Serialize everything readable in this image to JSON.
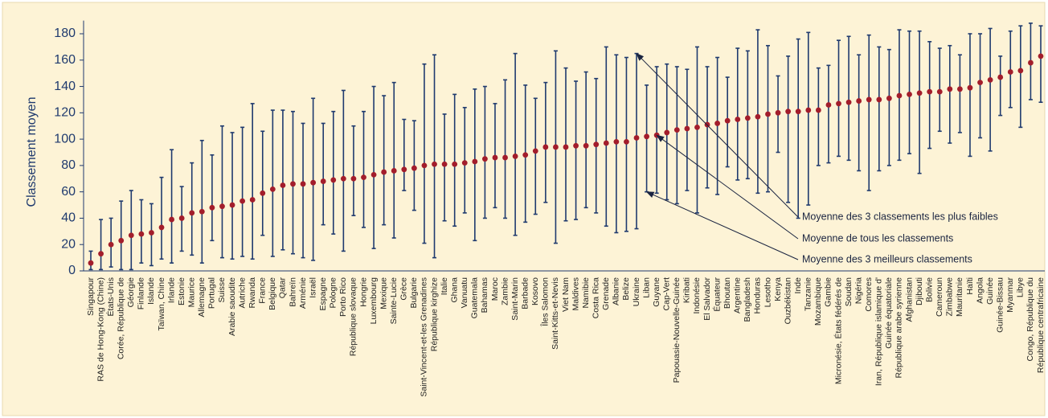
{
  "chart_data": {
    "type": "range-dot",
    "y_axis_label": "Classement moyen",
    "categories": [
      "Singapour",
      "RAS de Hong-Kong (Chine)",
      "États-Unis",
      "Corée, République de",
      "Géorgie",
      "Finlande",
      "Islande",
      "Taïwan, Chine",
      "Irlande",
      "Estonie",
      "Maurice",
      "Allemagne",
      "Portugal",
      "Suisse",
      "Arabie saoudite",
      "Autriche",
      "Rwanda",
      "France",
      "Belgique",
      "Qatar",
      "Bahreïn",
      "Arménie",
      "Israël",
      "Espagne",
      "Pologne",
      "Porto Rico",
      "République slovaque",
      "Hongrie",
      "Luxembourg",
      "Mexique",
      "Sainte-Lucie",
      "Grèce",
      "Bulgarie",
      "Saint-Vincent-et-les Grenadines",
      "République kirghize",
      "Italie",
      "Ghana",
      "Vanuatu",
      "Guatemala",
      "Bahamas",
      "Maroc",
      "Zambie",
      "Saint-Marin",
      "Barbade",
      "Kosovo",
      "Îles Salomon",
      "Saint-Kitts-et-Nevis",
      "Viet Nam",
      "Maldives",
      "Namibie",
      "Costa Rica",
      "Grenade",
      "Albanie",
      "Belize",
      "Ukraine",
      "Liban",
      "Guyane",
      "Cap-Vert",
      "Papouasie-Nouvelle-Guinée",
      "Kiribati",
      "Indonésie",
      "El Salvador",
      "Équateur",
      "Bhoutan",
      "Argentine",
      "Bangladesh",
      "Honduras",
      "Lesotho",
      "Kenya",
      "Ouzbékistan",
      "Inde",
      "Tanzanie",
      "Mozambique",
      "Gambie",
      "Micronésie, États fédérés de",
      "Soudan",
      "Nigéria",
      "Comores",
      "Iran, République islamique d'",
      "Guinée équatoriale",
      "République arabe syrienne",
      "Afghanistan",
      "Djibouti",
      "Bolivie",
      "Cameroun",
      "Zimbabwe",
      "Mauritanie",
      "Haïti",
      "Angola",
      "Guinée",
      "Guinée-Bissau",
      "Myanmar",
      "Libye",
      "Congo, République du",
      "République centrafricaine"
    ],
    "series": [
      {
        "name": "Moyenne de tous les classements",
        "color": "#a31d2b",
        "values": [
          6,
          13,
          20,
          23,
          27,
          28,
          29,
          33,
          39,
          40,
          44,
          45,
          48,
          49,
          50,
          53,
          54,
          59,
          62,
          65,
          66,
          66,
          67,
          68,
          69,
          70,
          70,
          71,
          73,
          75,
          76,
          77,
          78,
          80,
          81,
          81,
          81,
          82,
          83,
          85,
          86,
          86,
          87,
          88,
          91,
          94,
          94,
          94,
          95,
          95,
          96,
          97,
          98,
          98,
          101,
          102,
          103,
          105,
          107,
          108,
          109,
          111,
          112,
          114,
          115,
          116,
          117,
          119,
          120,
          121,
          121,
          122,
          122,
          126,
          127,
          128,
          129,
          130,
          130,
          131,
          133,
          134,
          135,
          136,
          136,
          138,
          138,
          139,
          143,
          145,
          147,
          151,
          152,
          158,
          163
        ]
      },
      {
        "name": "Moyenne des 3 meilleurs classements",
        "color": "#1f3a6e",
        "values": [
          1,
          1,
          3,
          1,
          1,
          6,
          4,
          9,
          6,
          15,
          12,
          6,
          23,
          10,
          9,
          11,
          9,
          27,
          11,
          16,
          13,
          10,
          8,
          35,
          28,
          15,
          42,
          33,
          17,
          35,
          25,
          61,
          46,
          21,
          10,
          38,
          34,
          44,
          23,
          40,
          48,
          40,
          27,
          37,
          43,
          52,
          21,
          38,
          39,
          48,
          44,
          34,
          29,
          30,
          32,
          60,
          59,
          54,
          51,
          61,
          44,
          63,
          58,
          79,
          69,
          70,
          59,
          60,
          90,
          52,
          40,
          50,
          80,
          82,
          87,
          84,
          76,
          61,
          76,
          80,
          84,
          89,
          74,
          93,
          106,
          97,
          105,
          87,
          101,
          91,
          118,
          124,
          109,
          130,
          128
        ]
      },
      {
        "name": "Moyenne des 3 classements les plus faibles",
        "color": "#1f3a6e",
        "values": [
          15,
          39,
          40,
          53,
          61,
          54,
          51,
          71,
          92,
          64,
          82,
          99,
          88,
          110,
          105,
          109,
          127,
          106,
          122,
          122,
          121,
          112,
          131,
          112,
          121,
          137,
          110,
          121,
          140,
          133,
          143,
          115,
          114,
          157,
          164,
          119,
          134,
          124,
          138,
          140,
          127,
          145,
          165,
          141,
          131,
          143,
          167,
          154,
          144,
          151,
          146,
          170,
          164,
          162,
          165,
          141,
          155,
          157,
          155,
          153,
          170,
          155,
          162,
          147,
          169,
          167,
          183,
          171,
          148,
          163,
          176,
          181,
          154,
          156,
          175,
          178,
          164,
          179,
          170,
          168,
          183,
          182,
          182,
          174,
          169,
          171,
          164,
          180,
          180,
          184,
          163,
          182,
          186,
          188,
          186
        ]
      }
    ],
    "ylim": [
      0,
      190
    ],
    "yticks": [
      0,
      20,
      40,
      60,
      80,
      100,
      120,
      140,
      160,
      180
    ]
  }
}
